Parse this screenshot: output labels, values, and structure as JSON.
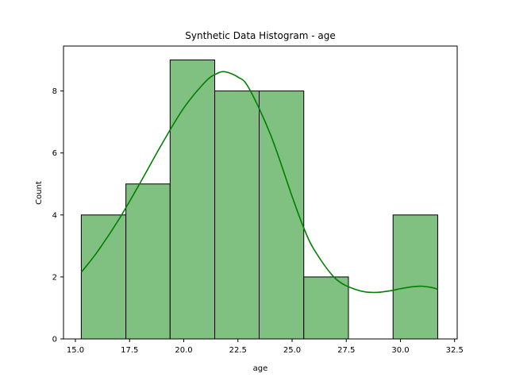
{
  "chart_data": {
    "type": "bar",
    "title": "Synthetic Data Histogram - age",
    "xlabel": "age",
    "ylabel": "Count",
    "xlim": [
      14.45,
      32.62
    ],
    "ylim": [
      0,
      9.45
    ],
    "x_ticks": [
      15.0,
      17.5,
      20.0,
      22.5,
      25.0,
      27.5,
      30.0,
      32.5
    ],
    "x_tick_labels": [
      "15.0",
      "17.5",
      "20.0",
      "22.5",
      "25.0",
      "27.5",
      "30.0",
      "32.5"
    ],
    "y_ticks": [
      0,
      2,
      4,
      6,
      8
    ],
    "y_tick_labels": [
      "0",
      "2",
      "4",
      "6",
      "8"
    ],
    "bin_edges": [
      15.27,
      17.33,
      19.37,
      21.43,
      23.48,
      25.54,
      27.6,
      29.66,
      31.72
    ],
    "counts": [
      4,
      5,
      9,
      8,
      8,
      2,
      0,
      4
    ],
    "kde": {
      "x": [
        15.27,
        16.0,
        17.0,
        18.0,
        19.0,
        20.0,
        21.0,
        21.5,
        21.9,
        22.5,
        23.0,
        24.0,
        25.0,
        25.5,
        26.0,
        27.0,
        28.0,
        28.8,
        29.5,
        30.0,
        30.5,
        31.0,
        31.5,
        31.72
      ],
      "y": [
        2.15,
        2.8,
        3.85,
        5.05,
        6.3,
        7.45,
        8.3,
        8.55,
        8.62,
        8.45,
        8.1,
        6.6,
        4.6,
        3.65,
        2.9,
        1.95,
        1.58,
        1.5,
        1.55,
        1.62,
        1.68,
        1.7,
        1.65,
        1.6
      ]
    },
    "colors": {
      "bar_fill": "#80c080",
      "bar_edge": "#000000",
      "kde_line": "#008000",
      "axes": "#000000"
    },
    "grid": false,
    "legend": "none"
  }
}
